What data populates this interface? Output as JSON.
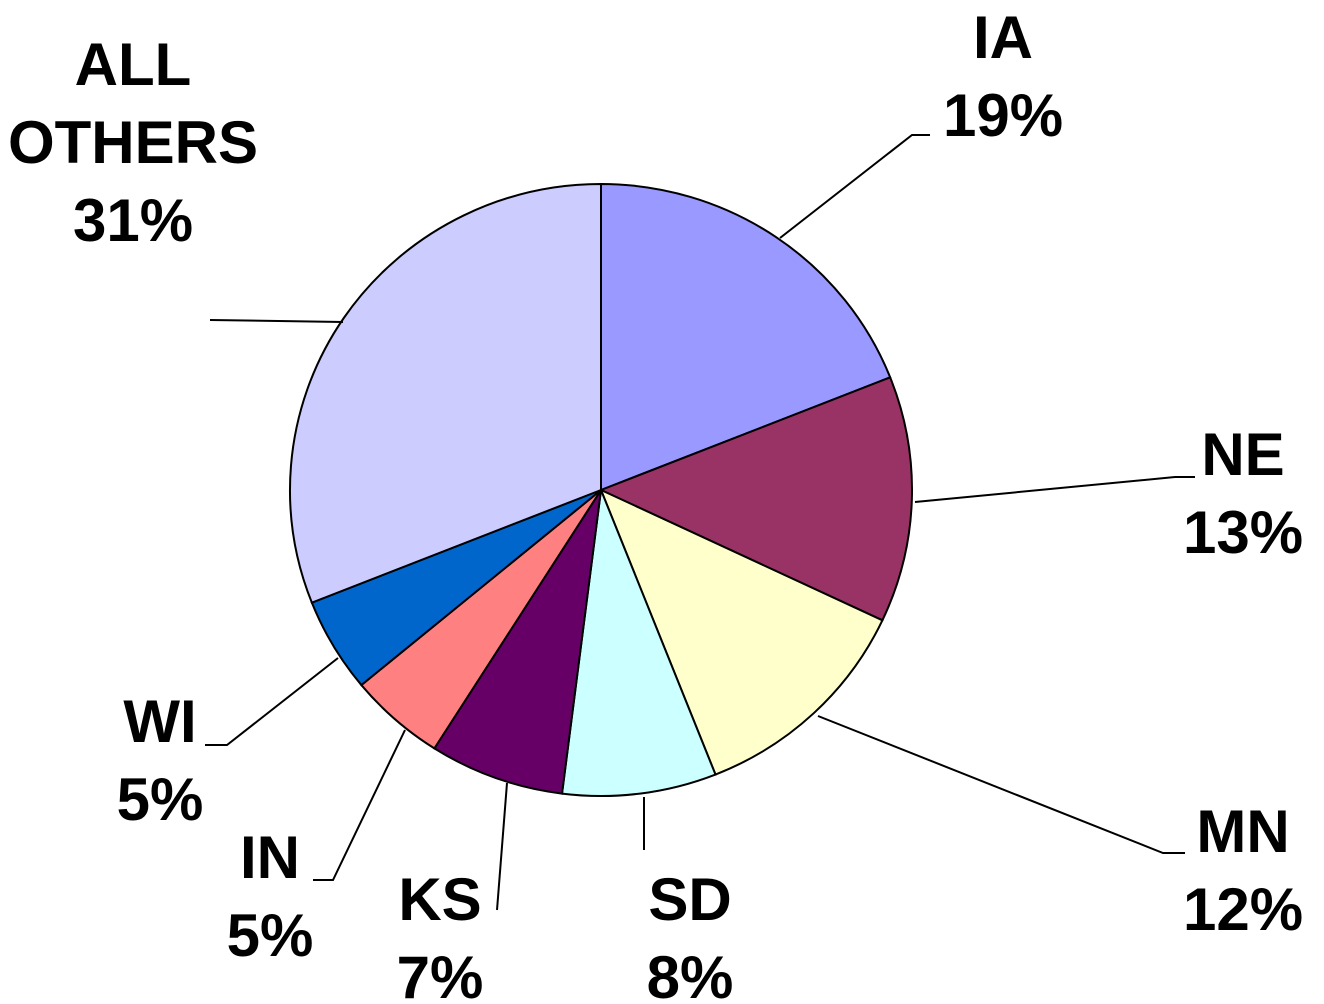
{
  "chart_data": {
    "type": "pie",
    "categories": [
      "IA",
      "NE",
      "MN",
      "SD",
      "KS",
      "IN",
      "WI",
      "ALL OTHERS"
    ],
    "values": [
      19,
      13,
      12,
      8,
      7,
      5,
      5,
      31
    ],
    "value_labels": [
      "19%",
      "13%",
      "12%",
      "8%",
      "7%",
      "5%",
      "5%",
      "31%"
    ],
    "colors": [
      "#9999ff",
      "#993366",
      "#ffffcc",
      "#ccffff",
      "#660066",
      "#ff8080",
      "#0066cc",
      "#ccccff"
    ]
  }
}
